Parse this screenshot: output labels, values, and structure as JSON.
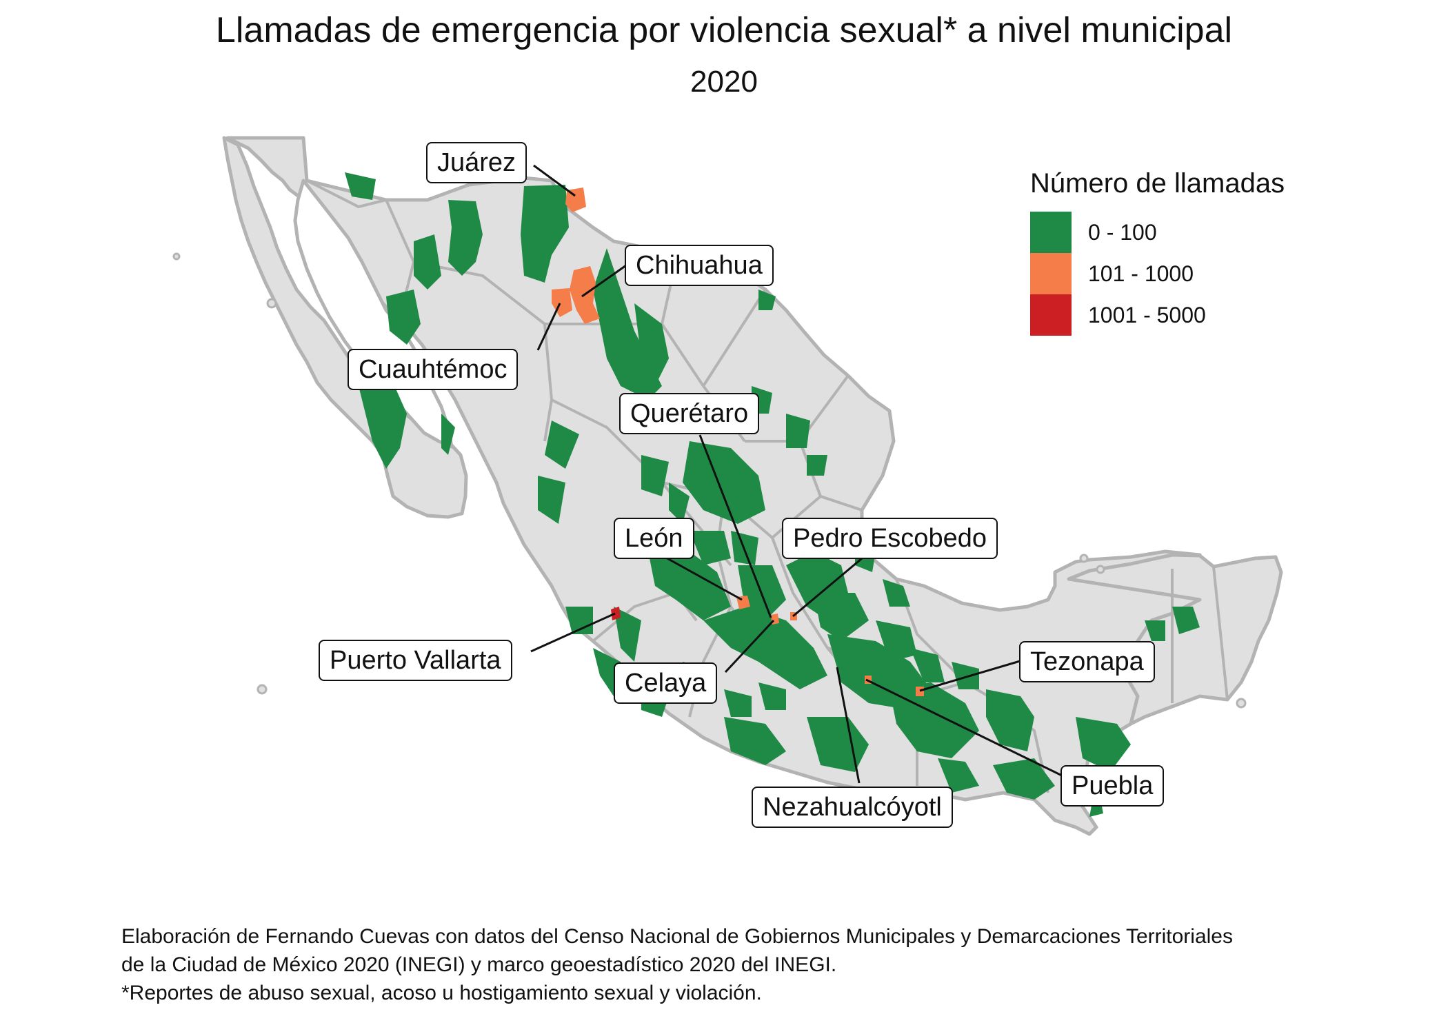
{
  "title": "Llamadas de emergencia por violencia sexual* a nivel municipal",
  "subtitle": "2020",
  "legend": {
    "title": "Número de llamadas",
    "items": [
      {
        "label": "0 - 100",
        "color": "#1f8a45"
      },
      {
        "label": "101 - 1000",
        "color": "#f47d4a"
      },
      {
        "label": "1001 - 5000",
        "color": "#cc1f24"
      }
    ]
  },
  "map_colors": {
    "land": "#e0e0e0",
    "border": "#b3b3b3",
    "water": "#ffffff"
  },
  "callouts": [
    {
      "label": "Juárez",
      "category": "101 - 1000"
    },
    {
      "label": "Chihuahua",
      "category": "101 - 1000"
    },
    {
      "label": "Cuauhtémoc",
      "category": "101 - 1000"
    },
    {
      "label": "Querétaro",
      "category": "101 - 1000"
    },
    {
      "label": "León",
      "category": "101 - 1000"
    },
    {
      "label": "Pedro Escobedo",
      "category": "101 - 1000"
    },
    {
      "label": "Puerto Vallarta",
      "category": "1001 - 5000"
    },
    {
      "label": "Celaya",
      "category": "101 - 1000"
    },
    {
      "label": "Tezonapa",
      "category": "101 - 1000"
    },
    {
      "label": "Puebla",
      "category": "101 - 1000"
    },
    {
      "label": "Nezahualcóyotl",
      "category": "101 - 1000"
    }
  ],
  "caption": {
    "line1": "Elaboración de Fernando Cuevas con datos del Censo Nacional de Gobiernos Municipales y Demarcaciones Territoriales",
    "line2": "de la Ciudad de México 2020 (INEGI) y marco geoestadístico 2020 del INEGI.",
    "line3": "*Reportes de abuso sexual, acoso u hostigamiento sexual y violación."
  }
}
